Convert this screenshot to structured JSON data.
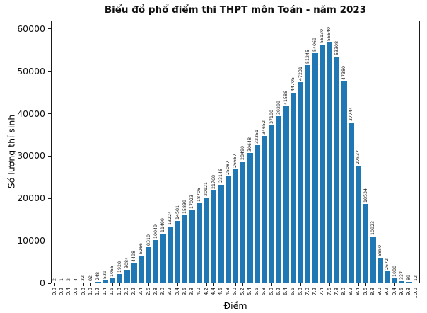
{
  "chart_data": {
    "type": "bar",
    "title": "Biểu đồ phổ điểm thi THPT môn Toán - năm 2023",
    "xlabel": "Điểm",
    "ylabel": "Số lượng thí sinh",
    "categories": [
      "0.0",
      "0.2",
      "0.4",
      "0.6",
      "0.8",
      "1.0",
      "1.2",
      "1.4",
      "1.6",
      "1.8",
      "2.0",
      "2.2",
      "2.4",
      "2.6",
      "2.8",
      "3.0",
      "3.2",
      "3.4",
      "3.6",
      "3.8",
      "4.0",
      "4.2",
      "4.4",
      "4.6",
      "4.8",
      "5.0",
      "5.2",
      "5.4",
      "5.6",
      "5.8",
      "6.0",
      "6.2",
      "6.4",
      "6.6",
      "6.8",
      "7.0",
      "7.2",
      "7.4",
      "7.6",
      "7.8",
      "8.0",
      "8.2",
      "8.4",
      "8.6",
      "8.8",
      "9.0",
      "9.2",
      "9.4",
      "9.6",
      "9.8",
      "10.0"
    ],
    "values": [
      2,
      1,
      2,
      4,
      32,
      82,
      248,
      539,
      1055,
      1928,
      3084,
      4498,
      6266,
      8310,
      10049,
      11499,
      13224,
      14581,
      15839,
      17023,
      18705,
      20121,
      21768,
      23146,
      25087,
      26667,
      28490,
      30648,
      32351,
      34652,
      37100,
      39299,
      41586,
      44705,
      47231,
      51245,
      54069,
      56130,
      56640,
      53308,
      47380,
      37744,
      27537,
      18534,
      10923,
      5850,
      2672,
      1080,
      337,
      89,
      12
    ],
    "yticks": [
      0,
      10000,
      20000,
      30000,
      40000,
      50000,
      60000
    ],
    "ylim": [
      0,
      62000
    ],
    "grid": false,
    "legend": null,
    "bar_color": "#1f77b4",
    "value_labels_rotation": 90,
    "xtick_rotation": 90
  }
}
